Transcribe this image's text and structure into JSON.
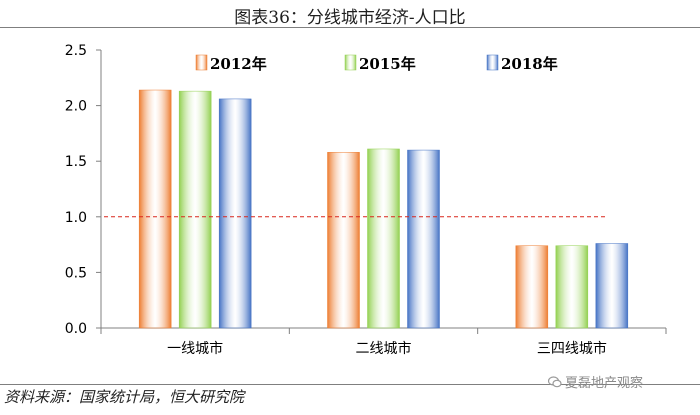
{
  "title": "图表36：分线城市经济-人口比",
  "source": "资料来源：国家统计局，恒大研究院",
  "watermark": "夏磊地产观察",
  "colors": {
    "s2012": "#ED7D31",
    "s2015": "#92D050",
    "s2018": "#4472C4",
    "ref": "#D9261C"
  },
  "chart_data": {
    "type": "bar",
    "categories": [
      "一线城市",
      "二线城市",
      "三四线城市"
    ],
    "series": [
      {
        "name": "2012年",
        "values": [
          2.14,
          1.58,
          0.74
        ]
      },
      {
        "name": "2015年",
        "values": [
          2.13,
          1.61,
          0.74
        ]
      },
      {
        "name": "2018年",
        "values": [
          2.06,
          1.6,
          0.76
        ]
      }
    ],
    "yticks": [
      "0.0",
      "0.5",
      "1.0",
      "1.5",
      "2.0",
      "2.5"
    ],
    "ylim": [
      0,
      2.5
    ],
    "reference_line": 1.0,
    "legend_position": "top",
    "grid": false
  }
}
